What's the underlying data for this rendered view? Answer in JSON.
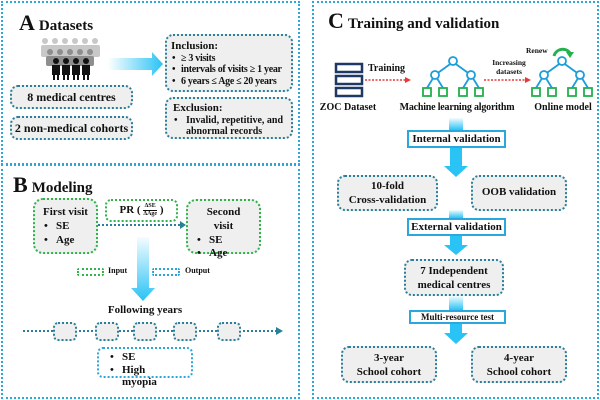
{
  "panelA": {
    "letter": "A",
    "title": "Datasets",
    "sources": [
      "8 medical centres",
      "2 non-medical cohorts"
    ],
    "inclusion": {
      "heading": "Inclusion:",
      "items": [
        "≥ 3 visits",
        "intervals of visits ≥ 1 year",
        "6 years ≤ Age ≤ 20 years"
      ]
    },
    "exclusion": {
      "heading": "Exclusion:",
      "items": [
        "Invalid, repetitive, and abnormal records"
      ]
    }
  },
  "panelB": {
    "letter": "B",
    "title": "Modeling",
    "first_visit": {
      "heading": "First visit",
      "items": [
        "SE",
        "Age"
      ]
    },
    "pr": {
      "label": "PR",
      "numerator": "ΔSE",
      "denominator": "ΔAge"
    },
    "second_visit": {
      "heading": "Second visit",
      "items": [
        "SE",
        "Age"
      ]
    },
    "legend": {
      "input": "Input",
      "output": "Output"
    },
    "following": "Following years",
    "outputs": [
      "SE",
      "High myopia"
    ]
  },
  "panelC": {
    "letter": "C",
    "title": "Training and validation",
    "training": "Training",
    "increasing": "Increasing datasets",
    "renew": "Renew",
    "zoc": "ZOC Dataset",
    "ml": "Machine learning algorithm",
    "online": "Online model",
    "internal": "Internal validation",
    "cv_line1": "10-fold",
    "cv_line2": "Cross-validation",
    "oob": "OOB validation",
    "external": "External validation",
    "indep_line1": "7 Independent",
    "indep_line2": "medical centres",
    "multi": "Multi-resource test",
    "y3_line1": "3-year",
    "y3_line2": "School cohort",
    "y4_line1": "4-year",
    "y4_line2": "School cohort"
  },
  "colors": {
    "panel_border": "#2aa7dc",
    "input_border": "#2fb34a",
    "arrow_blue": "#29c3f5",
    "arrow_red": "#e53935",
    "tree_blue": "#1a9ed9",
    "tree_green": "#22b14c",
    "db_navy": "#1f3864"
  }
}
